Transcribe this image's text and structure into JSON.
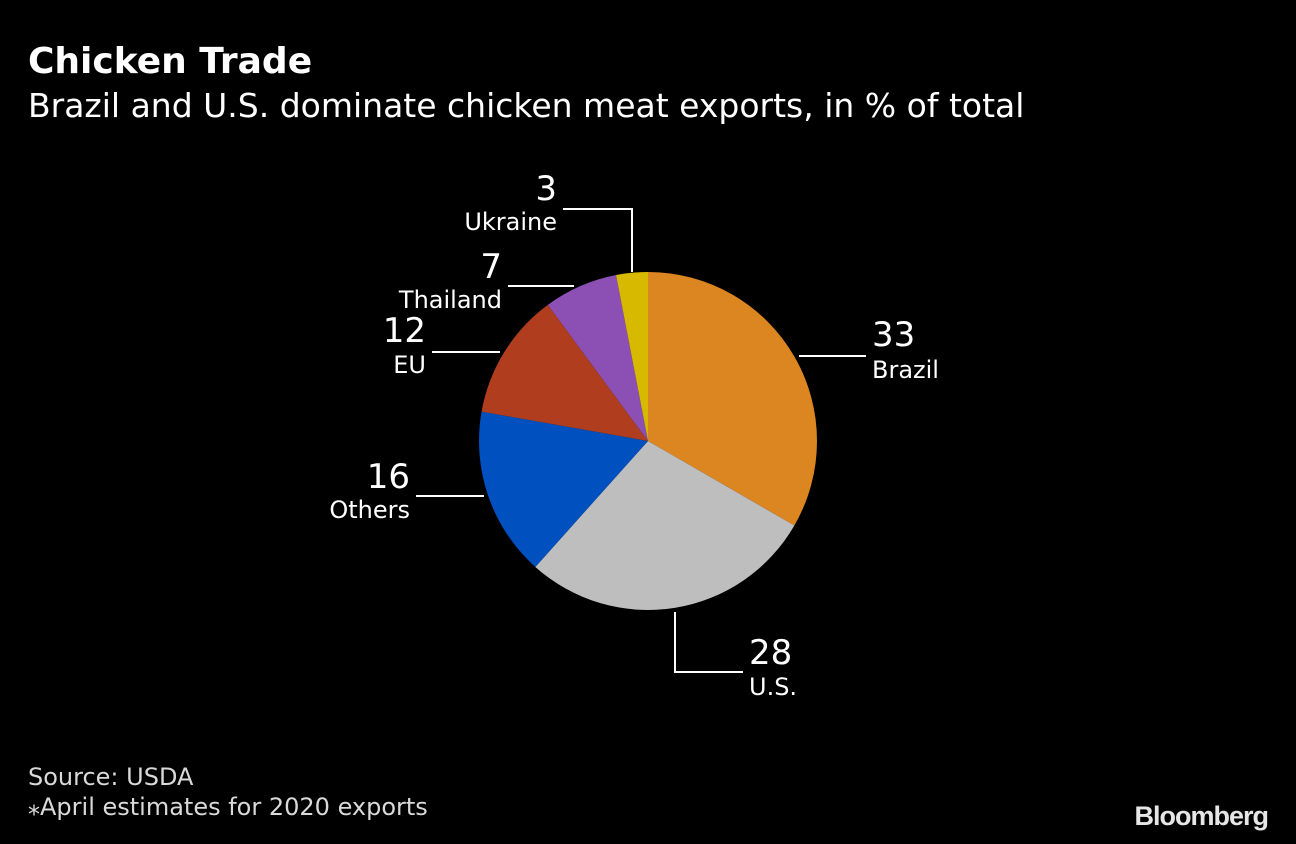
{
  "title": "Chicken Trade",
  "subtitle": "Brazil and U.S. dominate chicken meat exports, in % of total",
  "source": "Source: USDA",
  "note": "⁎April estimates for 2020 exports",
  "brand": "Bloomberg",
  "chart_data": {
    "type": "pie",
    "title": "Chicken Trade",
    "subtitle": "Brazil and U.S. dominate chicken meat exports, in % of total",
    "unit": "% of total",
    "start": "12 o'clock",
    "direction": "clockwise",
    "slices": [
      {
        "label": "Brazil",
        "value": 33,
        "value_label": "33",
        "color": "#dc8622"
      },
      {
        "label": "U.S.",
        "value": 28,
        "value_label": "28",
        "color": "#bebebe"
      },
      {
        "label": "Others",
        "value": 16,
        "value_label": "16",
        "color": "#0050c0"
      },
      {
        "label": "EU",
        "value": 12,
        "value_label": "12",
        "color": "#b03e1e"
      },
      {
        "label": "Thailand",
        "value": 7,
        "value_label": "7",
        "color": "#8c50b4"
      },
      {
        "label": "Ukraine",
        "value": 3,
        "value_label": "3",
        "color": "#d7b900"
      }
    ]
  }
}
